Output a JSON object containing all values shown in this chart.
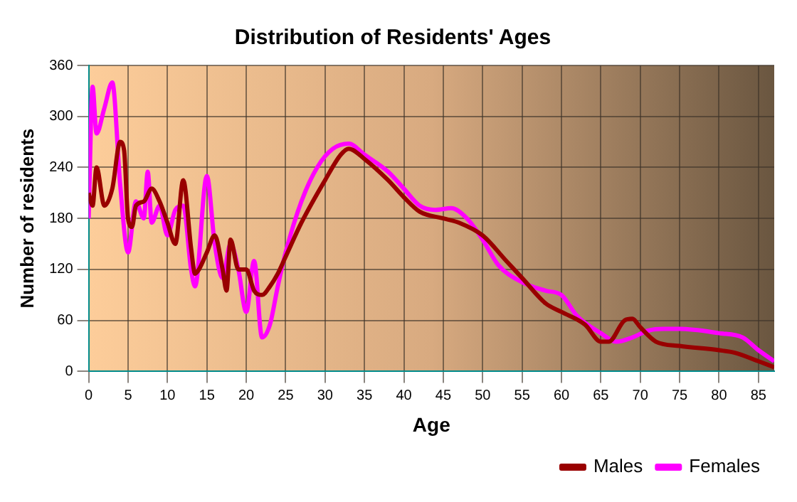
{
  "chart_data": {
    "type": "line",
    "title": "Distribution of Residents' Ages",
    "xlabel": "Age",
    "ylabel": "Number of residents",
    "xlim": [
      0,
      87
    ],
    "xticks": [
      0,
      5,
      10,
      15,
      20,
      25,
      30,
      35,
      40,
      45,
      50,
      55,
      60,
      65,
      70,
      75,
      80,
      85
    ],
    "ylim": [
      0,
      360
    ],
    "yticks": [
      0,
      60,
      120,
      180,
      240,
      300,
      360
    ],
    "grid": true,
    "legend": "bottom right",
    "marker": "none",
    "line_style": "solid",
    "series": [
      {
        "name": "Males",
        "color": "#990000",
        "x": [
          0,
          0.5,
          1,
          2,
          3,
          4,
          4.5,
          5,
          5.5,
          6,
          7,
          8,
          9,
          10,
          11,
          12,
          13,
          13.5,
          14,
          15,
          16,
          17,
          17.5,
          18,
          19,
          20,
          21,
          22,
          23,
          24,
          25,
          27,
          30,
          32,
          33,
          35,
          38,
          40,
          42,
          45,
          47,
          50,
          53,
          55,
          58,
          60,
          63,
          65,
          66,
          68,
          69,
          70,
          72,
          75,
          80,
          82,
          85,
          87
        ],
        "values": [
          210,
          195,
          240,
          195,
          215,
          270,
          260,
          180,
          170,
          195,
          200,
          215,
          200,
          175,
          150,
          225,
          145,
          115,
          120,
          140,
          160,
          120,
          95,
          155,
          120,
          120,
          95,
          90,
          100,
          115,
          135,
          175,
          225,
          255,
          262,
          250,
          225,
          205,
          188,
          180,
          175,
          160,
          130,
          110,
          80,
          70,
          55,
          35,
          35,
          60,
          62,
          52,
          35,
          30,
          25,
          22,
          12,
          5
        ]
      },
      {
        "name": "Females",
        "color": "#ff00ff",
        "x": [
          0,
          0.5,
          1,
          2,
          3,
          4,
          5,
          6,
          7,
          7.5,
          8,
          9,
          10,
          11,
          12,
          13,
          13.5,
          15,
          16,
          17,
          18,
          19,
          20,
          21,
          22,
          23,
          24,
          25,
          27,
          29,
          31,
          33,
          35,
          38,
          40,
          42,
          44,
          46,
          48,
          50,
          52,
          55,
          58,
          60,
          62,
          65,
          67,
          69,
          71,
          73,
          75,
          80,
          83,
          85,
          87
        ],
        "values": [
          180,
          335,
          280,
          310,
          340,
          220,
          140,
          200,
          180,
          235,
          175,
          195,
          160,
          190,
          195,
          120,
          100,
          230,
          150,
          110,
          150,
          120,
          70,
          130,
          40,
          55,
          100,
          140,
          200,
          240,
          262,
          268,
          255,
          235,
          215,
          195,
          190,
          192,
          180,
          155,
          125,
          105,
          95,
          90,
          65,
          45,
          35,
          40,
          48,
          50,
          50,
          45,
          40,
          25,
          12
        ]
      }
    ]
  }
}
